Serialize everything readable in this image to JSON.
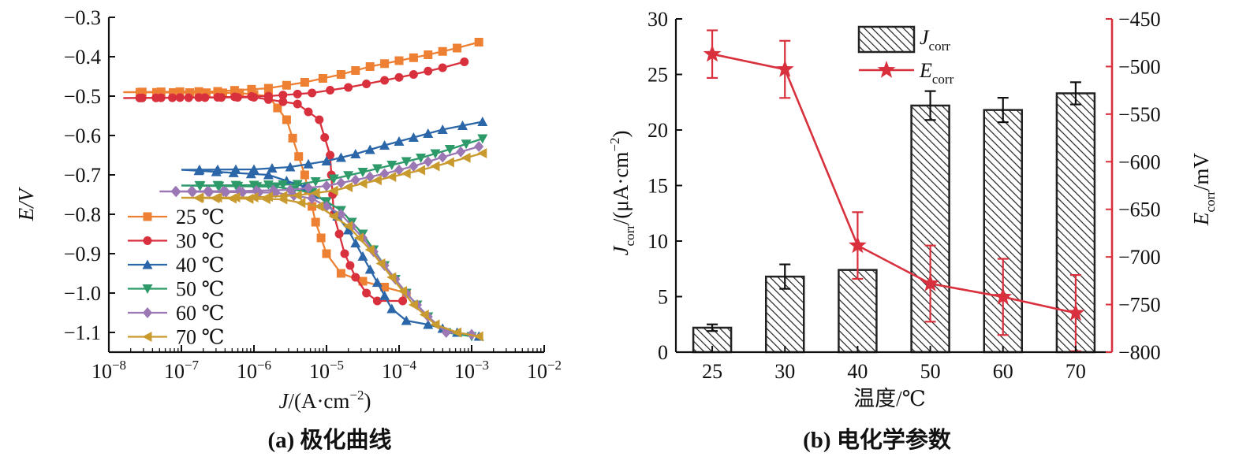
{
  "chart_data": [
    {
      "type": "line",
      "panel_caption": "(a) 极化曲线",
      "xlabel_main": "J",
      "xlabel_unit": "/(A·cm",
      "xlabel_exp": "−2",
      "xlabel_close": ")",
      "ylabel": "E/V",
      "x_scale": "log",
      "xlim_log10": [
        -8,
        -2
      ],
      "ylim": [
        -1.15,
        -0.3
      ],
      "x_tick_exponents": [
        "−8",
        "−7",
        "−6",
        "−5",
        "−4",
        "−3",
        "−2"
      ],
      "y_ticks": [
        "−0.3",
        "−0.4",
        "−0.5",
        "−0.6",
        "−0.7",
        "−0.8",
        "−0.9",
        "−1.0",
        "−1.1"
      ],
      "y_tick_values": [
        -0.3,
        -0.4,
        -0.5,
        -0.6,
        -0.7,
        -0.8,
        -0.9,
        -1.0,
        -1.1
      ],
      "legend_position": "bottom-left",
      "series": [
        {
          "name": "25 ℃",
          "color": "#ee8033",
          "marker": "square",
          "anodic": [
            [
              -7.8,
              -0.49
            ],
            [
              -6.5,
              -0.488
            ],
            [
              -5.8,
              -0.48
            ],
            [
              -5.3,
              -0.465
            ],
            [
              -4.8,
              -0.445
            ],
            [
              -4.4,
              -0.425
            ],
            [
              -4.0,
              -0.41
            ],
            [
              -3.6,
              -0.395
            ],
            [
              -3.2,
              -0.378
            ],
            [
              -2.9,
              -0.363
            ]
          ],
          "cathodic": [
            [
              -7.8,
              -0.49
            ],
            [
              -6.2,
              -0.492
            ],
            [
              -5.8,
              -0.5
            ],
            [
              -5.55,
              -0.56
            ],
            [
              -5.3,
              -0.7
            ],
            [
              -5.15,
              -0.82
            ],
            [
              -5.0,
              -0.9
            ],
            [
              -4.8,
              -0.95
            ],
            [
              -4.5,
              -0.97
            ],
            [
              -4.2,
              -0.985
            ],
            [
              -3.9,
              -1.0
            ]
          ]
        },
        {
          "name": "30 ℃",
          "color": "#d9303d",
          "marker": "circle",
          "anodic": [
            [
              -7.8,
              -0.505
            ],
            [
              -6.5,
              -0.503
            ],
            [
              -5.8,
              -0.5
            ],
            [
              -5.2,
              -0.492
            ],
            [
              -4.7,
              -0.478
            ],
            [
              -4.2,
              -0.46
            ],
            [
              -3.8,
              -0.445
            ],
            [
              -3.4,
              -0.428
            ],
            [
              -3.1,
              -0.413
            ]
          ],
          "cathodic": [
            [
              -7.8,
              -0.505
            ],
            [
              -6.0,
              -0.503
            ],
            [
              -5.4,
              -0.52
            ],
            [
              -5.1,
              -0.56
            ],
            [
              -4.95,
              -0.65
            ],
            [
              -4.9,
              -0.8
            ],
            [
              -4.75,
              -0.9
            ],
            [
              -4.6,
              -0.96
            ],
            [
              -4.45,
              -1.0
            ],
            [
              -4.3,
              -1.02
            ],
            [
              -3.95,
              -1.02
            ]
          ]
        },
        {
          "name": "40 ℃",
          "color": "#2a66a8",
          "marker": "triangle-up",
          "anodic": [
            [
              -7.0,
              -0.687
            ],
            [
              -6.0,
              -0.686
            ],
            [
              -5.5,
              -0.68
            ],
            [
              -5.0,
              -0.665
            ],
            [
              -4.6,
              -0.647
            ],
            [
              -4.2,
              -0.625
            ],
            [
              -3.8,
              -0.605
            ],
            [
              -3.4,
              -0.585
            ],
            [
              -2.85,
              -0.565
            ]
          ],
          "cathodic": [
            [
              -7.0,
              -0.687
            ],
            [
              -5.8,
              -0.7
            ],
            [
              -5.3,
              -0.73
            ],
            [
              -5.0,
              -0.77
            ],
            [
              -4.7,
              -0.84
            ],
            [
              -4.4,
              -0.94
            ],
            [
              -4.1,
              -1.04
            ],
            [
              -3.9,
              -1.07
            ],
            [
              -3.6,
              -1.08
            ],
            [
              -3.2,
              -1.1
            ],
            [
              -2.9,
              -1.11
            ]
          ]
        },
        {
          "name": "50 ℃",
          "color": "#2e9a6a",
          "marker": "triangle-down",
          "anodic": [
            [
              -7.0,
              -0.727
            ],
            [
              -6.0,
              -0.726
            ],
            [
              -5.4,
              -0.724
            ],
            [
              -4.9,
              -0.71
            ],
            [
              -4.5,
              -0.693
            ],
            [
              -4.1,
              -0.675
            ],
            [
              -3.7,
              -0.657
            ],
            [
              -3.3,
              -0.635
            ],
            [
              -2.85,
              -0.608
            ]
          ],
          "cathodic": [
            [
              -7.0,
              -0.727
            ],
            [
              -5.7,
              -0.73
            ],
            [
              -5.2,
              -0.745
            ],
            [
              -4.8,
              -0.79
            ],
            [
              -4.5,
              -0.85
            ],
            [
              -4.2,
              -0.93
            ],
            [
              -3.9,
              -1.0
            ],
            [
              -3.6,
              -1.06
            ],
            [
              -3.35,
              -1.1
            ],
            [
              -3.0,
              -1.11
            ]
          ]
        },
        {
          "name": "60 ℃",
          "color": "#9b78b4",
          "marker": "diamond",
          "anodic": [
            [
              -7.3,
              -0.742
            ],
            [
              -6.2,
              -0.741
            ],
            [
              -5.5,
              -0.738
            ],
            [
              -5.0,
              -0.728
            ],
            [
              -4.6,
              -0.713
            ],
            [
              -4.2,
              -0.697
            ],
            [
              -3.8,
              -0.678
            ],
            [
              -3.4,
              -0.655
            ],
            [
              -2.9,
              -0.628
            ]
          ],
          "cathodic": [
            [
              -7.3,
              -0.742
            ],
            [
              -5.7,
              -0.745
            ],
            [
              -5.2,
              -0.76
            ],
            [
              -4.8,
              -0.8
            ],
            [
              -4.5,
              -0.86
            ],
            [
              -4.2,
              -0.93
            ],
            [
              -3.9,
              -1.0
            ],
            [
              -3.6,
              -1.06
            ],
            [
              -3.35,
              -1.1
            ],
            [
              -3.0,
              -1.105
            ]
          ]
        },
        {
          "name": "70 ℃",
          "color": "#c99a2e",
          "marker": "triangle-left",
          "anodic": [
            [
              -7.0,
              -0.758
            ],
            [
              -6.0,
              -0.757
            ],
            [
              -5.4,
              -0.752
            ],
            [
              -4.9,
              -0.74
            ],
            [
              -4.5,
              -0.722
            ],
            [
              -4.1,
              -0.705
            ],
            [
              -3.7,
              -0.688
            ],
            [
              -3.3,
              -0.668
            ],
            [
              -2.85,
              -0.645
            ]
          ],
          "cathodic": [
            [
              -7.0,
              -0.758
            ],
            [
              -5.6,
              -0.762
            ],
            [
              -5.1,
              -0.78
            ],
            [
              -4.7,
              -0.83
            ],
            [
              -4.4,
              -0.89
            ],
            [
              -4.1,
              -0.96
            ],
            [
              -3.8,
              -1.03
            ],
            [
              -3.5,
              -1.08
            ],
            [
              -3.2,
              -1.1
            ],
            [
              -2.9,
              -1.11
            ]
          ]
        }
      ]
    },
    {
      "type": "bar",
      "panel_caption": "(b) 电化学参数",
      "xlabel": "温度/℃",
      "categories": [
        "25",
        "30",
        "40",
        "50",
        "60",
        "70"
      ],
      "ylabel_left_main": "J",
      "ylabel_left_sub": "corr",
      "ylabel_left_unit": "/(μA·cm",
      "ylabel_left_exp": "−2",
      "ylabel_left_close": ")",
      "ylabel_right_main": "E",
      "ylabel_right_sub": "corr",
      "ylabel_right_unit": "/mV",
      "ylim_left": [
        0,
        30
      ],
      "ylim_right": [
        -800,
        -450
      ],
      "y_left_ticks": [
        "0",
        "5",
        "10",
        "15",
        "20",
        "25",
        "30"
      ],
      "y_left_tick_values": [
        0,
        5,
        10,
        15,
        20,
        25,
        30
      ],
      "y_right_ticks": [
        "−450",
        "−500",
        "−550",
        "−600",
        "−650",
        "−700",
        "−750",
        "−800"
      ],
      "y_right_tick_values": [
        -450,
        -500,
        -550,
        -600,
        -650,
        -700,
        -750,
        -800
      ],
      "right_axis_color": "#d9303d",
      "legend_position": "top-center",
      "series": [
        {
          "name_main": "J",
          "name_sub": "corr",
          "kind": "bar",
          "pattern": "diagonal-hatch",
          "values": [
            2.2,
            6.8,
            7.4,
            22.2,
            21.8,
            23.3
          ],
          "errors": [
            0.3,
            1.1,
            0.0,
            1.3,
            1.1,
            1.0
          ]
        },
        {
          "name_main": "E",
          "name_sub": "corr",
          "kind": "line",
          "marker": "star",
          "color": "#d9303d",
          "values": [
            -487,
            -503,
            -688,
            -728,
            -742,
            -759
          ],
          "errors": [
            25,
            30,
            35,
            40,
            40,
            40
          ]
        }
      ]
    }
  ]
}
